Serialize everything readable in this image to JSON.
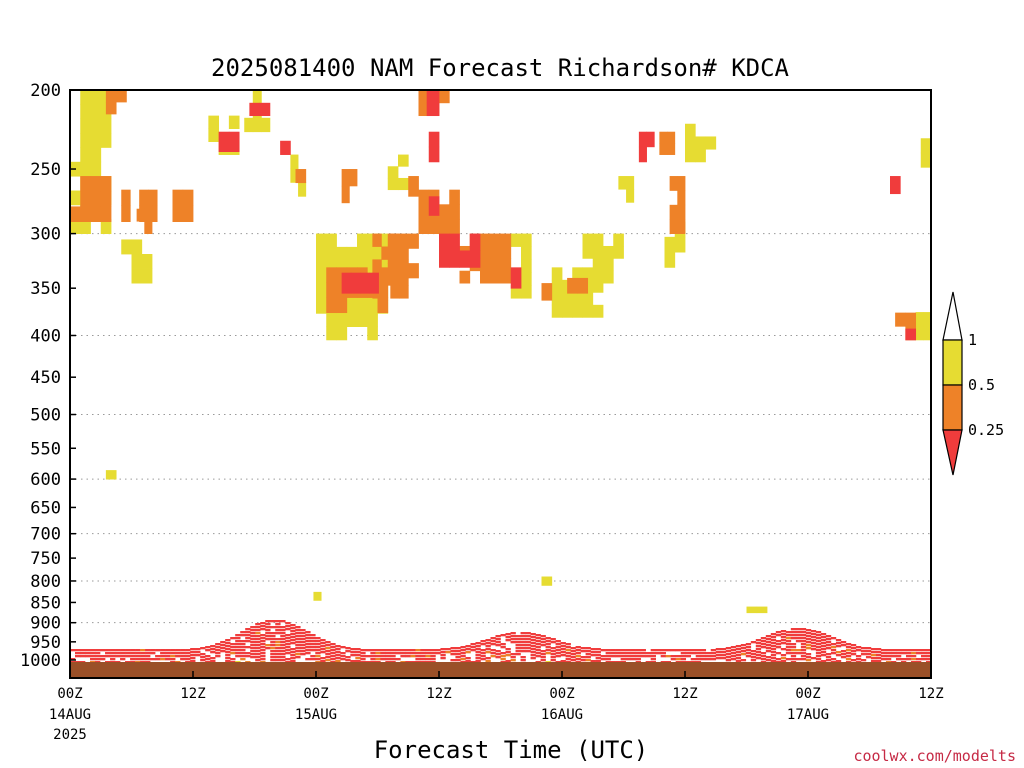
{
  "chart_data": {
    "type": "heatmap",
    "title": "2025081400 NAM Forecast Richardson# KDCA",
    "xlabel": "Forecast Time (UTC)",
    "ylabel": "",
    "y_scale": "log-pressure",
    "y_inverted": true,
    "ylim": [
      1000,
      200
    ],
    "y_ticks": [
      "200",
      "250",
      "300",
      "350",
      "400",
      "450",
      "500",
      "550",
      "600",
      "650",
      "700",
      "750",
      "800",
      "850",
      "900",
      "950",
      "1000"
    ],
    "x_ticks": [
      {
        "hour": 0,
        "l1": "00Z",
        "l2": "14AUG",
        "l3": "2025"
      },
      {
        "hour": 12,
        "l1": "12Z",
        "l2": "",
        "l3": ""
      },
      {
        "hour": 24,
        "l1": "00Z",
        "l2": "15AUG",
        "l3": ""
      },
      {
        "hour": 36,
        "l1": "12Z",
        "l2": "",
        "l3": ""
      },
      {
        "hour": 48,
        "l1": "00Z",
        "l2": "16AUG",
        "l3": ""
      },
      {
        "hour": 60,
        "l1": "12Z",
        "l2": "",
        "l3": ""
      },
      {
        "hour": 72,
        "l1": "00Z",
        "l2": "17AUG",
        "l3": ""
      },
      {
        "hour": 84,
        "l1": "12Z",
        "l2": "",
        "l3": ""
      }
    ],
    "xlim": [
      0,
      84
    ],
    "grid": true,
    "legend_labels": [
      "1",
      "0.5",
      "0.25"
    ],
    "color_levels": [
      {
        "range": "<0.25",
        "color": "#f03c3c"
      },
      {
        "range": "0.25-0.5",
        "color": "#ee8228"
      },
      {
        "range": "0.5-1",
        "color": "#e6dc32"
      },
      {
        "range": ">1",
        "color": "#ffffff"
      }
    ],
    "surface_color": "#9a5028",
    "patches": [
      {
        "h0": 0,
        "h1": 4,
        "p0": 200,
        "p1": 300,
        "cls": "ye"
      },
      {
        "h0": 0,
        "h1": 4,
        "p0": 255,
        "p1": 290,
        "cls": "or"
      },
      {
        "h0": 3.5,
        "h1": 5.5,
        "p0": 200,
        "p1": 214,
        "cls": "or"
      },
      {
        "h0": 5,
        "h1": 8,
        "p0": 305,
        "p1": 345,
        "cls": "ye"
      },
      {
        "h0": 5,
        "h1": 8.5,
        "p0": 265,
        "p1": 290,
        "cls": "or"
      },
      {
        "h0": 6.5,
        "h1": 8,
        "p0": 270,
        "p1": 300,
        "cls": "or"
      },
      {
        "h0": 10,
        "h1": 12,
        "p0": 265,
        "p1": 290,
        "cls": "or"
      },
      {
        "h0": 10,
        "h1": 12,
        "p0": 290,
        "p1": 305,
        "cls": "ye"
      },
      {
        "h0": 13.5,
        "h1": 16.5,
        "p0": 215,
        "p1": 240,
        "cls": "ye"
      },
      {
        "h0": 14.5,
        "h1": 16.5,
        "p0": 225,
        "p1": 238,
        "cls": "re"
      },
      {
        "h0": 17,
        "h1": 19.5,
        "p0": 200,
        "p1": 225,
        "cls": "ye"
      },
      {
        "h0": 17.5,
        "h1": 19.5,
        "p0": 200,
        "p1": 215,
        "cls": "re"
      },
      {
        "h0": 19.5,
        "h1": 21.5,
        "p0": 222,
        "p1": 240,
        "cls": "re"
      },
      {
        "h0": 21.5,
        "h1": 23,
        "p0": 240,
        "p1": 270,
        "cls": "ye"
      },
      {
        "h0": 22,
        "h1": 23,
        "p0": 250,
        "p1": 270,
        "cls": "or"
      },
      {
        "h0": 24,
        "h1": 31,
        "p0": 300,
        "p1": 405,
        "cls": "ye"
      },
      {
        "h0": 25,
        "h1": 31,
        "p0": 330,
        "p1": 375,
        "cls": "or"
      },
      {
        "h0": 26.5,
        "h1": 31,
        "p0": 335,
        "p1": 355,
        "cls": "re"
      },
      {
        "h0": 26.5,
        "h1": 28,
        "p0": 250,
        "p1": 275,
        "cls": "or"
      },
      {
        "h0": 27.5,
        "h1": 29.5,
        "p0": 250,
        "p1": 265,
        "cls": "re"
      },
      {
        "h0": 29.5,
        "h1": 33,
        "p0": 300,
        "p1": 360,
        "cls": "or"
      },
      {
        "h0": 31,
        "h1": 34,
        "p0": 300,
        "p1": 340,
        "cls": "or"
      },
      {
        "h0": 31,
        "h1": 33,
        "p0": 240,
        "p1": 265,
        "cls": "ye"
      },
      {
        "h0": 32,
        "h1": 34,
        "p0": 255,
        "p1": 270,
        "cls": "or"
      },
      {
        "h0": 34,
        "h1": 37,
        "p0": 200,
        "p1": 215,
        "cls": "or"
      },
      {
        "h0": 34.8,
        "h1": 36,
        "p0": 200,
        "p1": 215,
        "cls": "re"
      },
      {
        "h0": 34,
        "h1": 36,
        "p0": 225,
        "p1": 245,
        "cls": "re"
      },
      {
        "h0": 34,
        "h1": 38,
        "p0": 265,
        "p1": 300,
        "cls": "or"
      },
      {
        "h0": 35,
        "h1": 37,
        "p0": 270,
        "p1": 285,
        "cls": "re"
      },
      {
        "h0": 36,
        "h1": 40,
        "p0": 300,
        "p1": 330,
        "cls": "re"
      },
      {
        "h0": 38,
        "h1": 43,
        "p0": 300,
        "p1": 345,
        "cls": "or"
      },
      {
        "h0": 41,
        "h1": 44,
        "p0": 330,
        "p1": 350,
        "cls": "re"
      },
      {
        "h0": 43,
        "h1": 45,
        "p0": 300,
        "p1": 360,
        "cls": "ye"
      },
      {
        "h0": 45,
        "h1": 47,
        "p0": 345,
        "p1": 380,
        "cls": "or"
      },
      {
        "h0": 47,
        "h1": 52,
        "p0": 330,
        "p1": 380,
        "cls": "ye"
      },
      {
        "h0": 48.5,
        "h1": 50.5,
        "p0": 340,
        "p1": 355,
        "cls": "or"
      },
      {
        "h0": 50,
        "h1": 54,
        "p0": 300,
        "p1": 345,
        "cls": "ye"
      },
      {
        "h0": 53.5,
        "h1": 55,
        "p0": 255,
        "p1": 285,
        "cls": "ye"
      },
      {
        "h0": 55.5,
        "h1": 57,
        "p0": 225,
        "p1": 245,
        "cls": "re"
      },
      {
        "h0": 57.5,
        "h1": 59,
        "p0": 225,
        "p1": 240,
        "cls": "or"
      },
      {
        "h0": 58,
        "h1": 60,
        "p0": 290,
        "p1": 330,
        "cls": "ye"
      },
      {
        "h0": 58.5,
        "h1": 60,
        "p0": 255,
        "p1": 300,
        "cls": "or"
      },
      {
        "h0": 60,
        "h1": 63,
        "p0": 220,
        "p1": 245,
        "cls": "ye"
      },
      {
        "h0": 80,
        "h1": 82,
        "p0": 255,
        "p1": 268,
        "cls": "re"
      },
      {
        "h0": 83,
        "h1": 84,
        "p0": 220,
        "p1": 270,
        "cls": "ye"
      },
      {
        "h0": 82.5,
        "h1": 84,
        "p0": 360,
        "p1": 405,
        "cls": "ye"
      },
      {
        "h0": 80.5,
        "h1": 82.5,
        "p0": 375,
        "p1": 405,
        "cls": "or"
      },
      {
        "h0": 81.5,
        "h1": 82.5,
        "p0": 380,
        "p1": 405,
        "cls": "re"
      },
      {
        "h0": 3.5,
        "h1": 5.5,
        "p0": 585,
        "p1": 600,
        "cls": "ye"
      },
      {
        "h0": 23,
        "h1": 24.5,
        "p0": 825,
        "p1": 845,
        "cls": "ye"
      },
      {
        "h0": 45,
        "h1": 47,
        "p0": 790,
        "p1": 810,
        "cls": "ye"
      },
      {
        "h0": 65,
        "h1": 68,
        "p0": 860,
        "p1": 875,
        "cls": "ye"
      }
    ]
  }
}
